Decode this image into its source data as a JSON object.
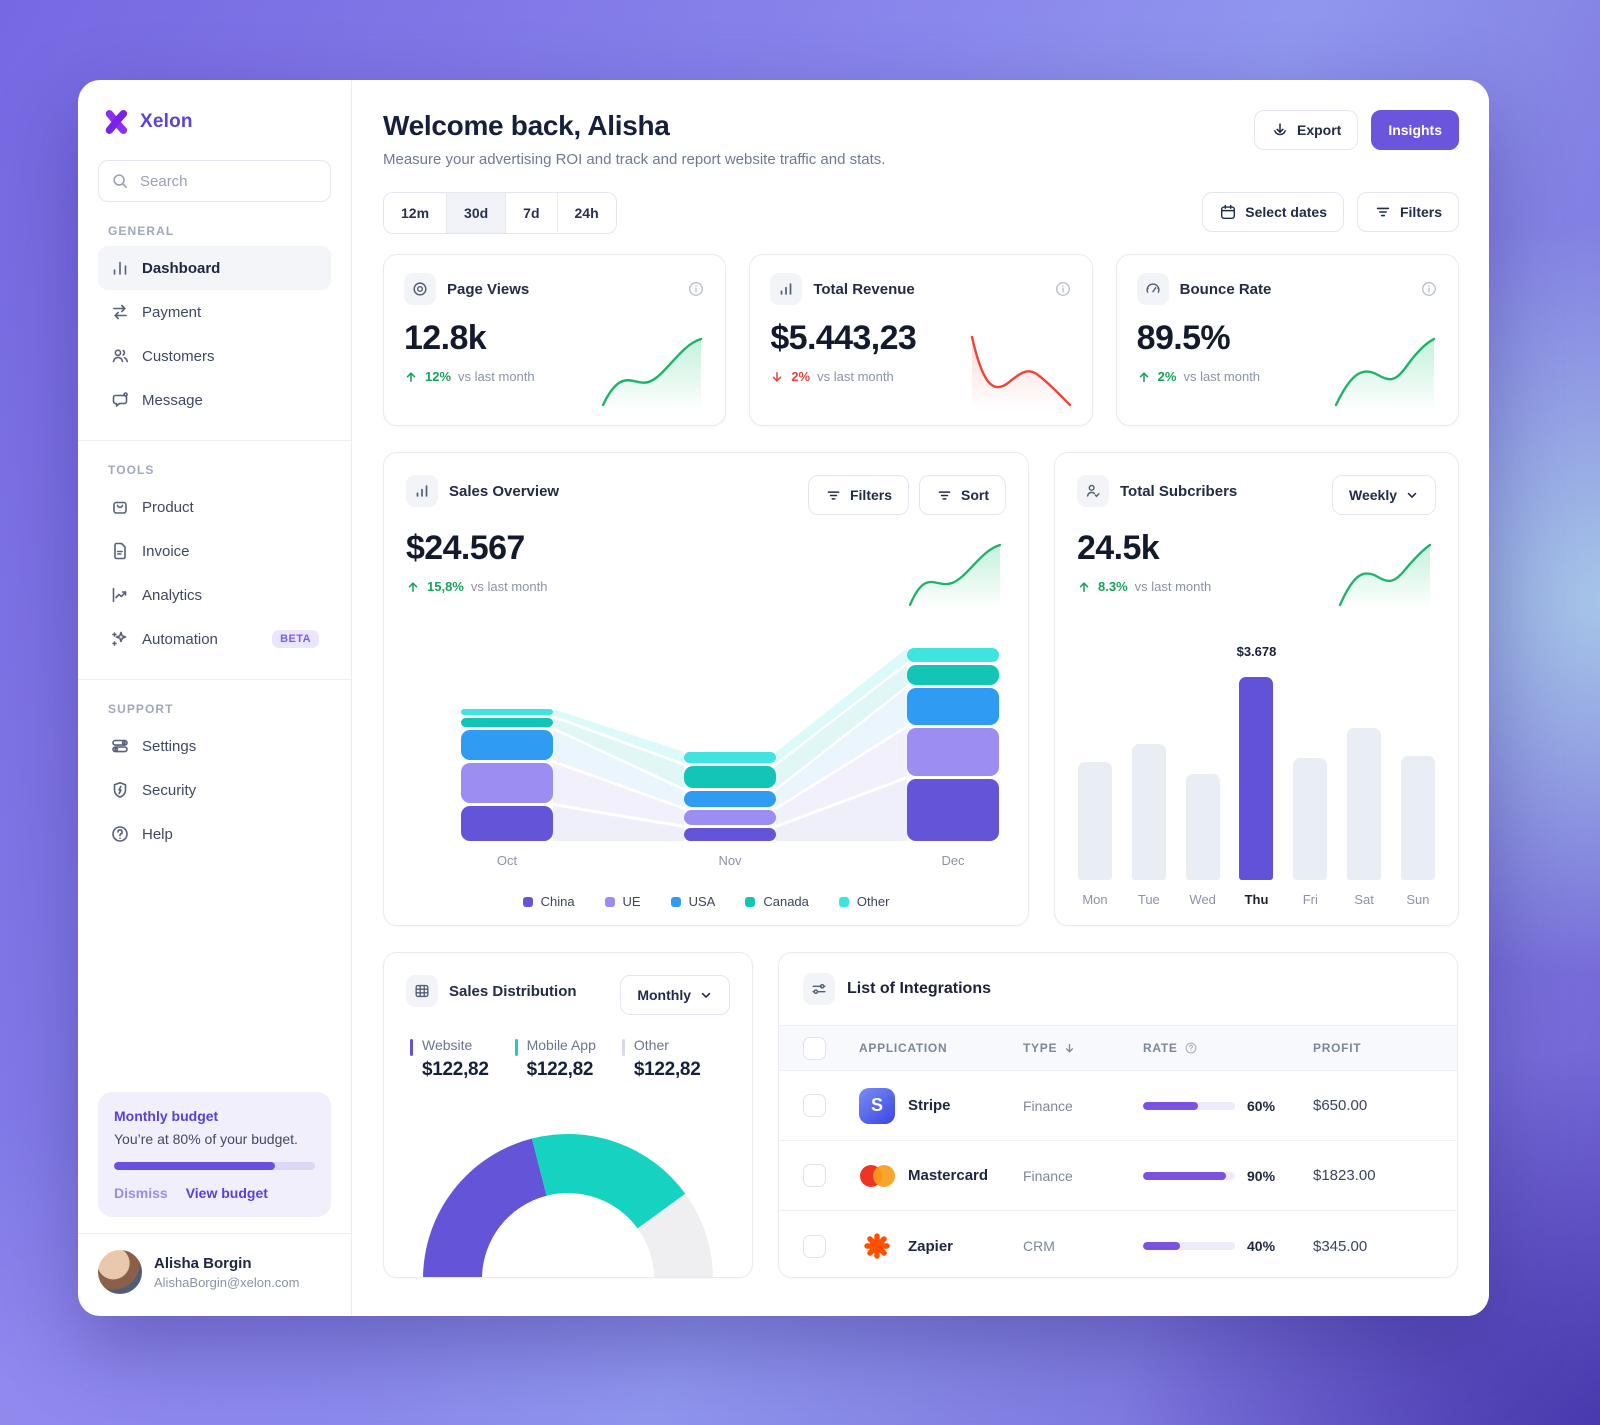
{
  "app": {
    "brand": "Xelon"
  },
  "sidebar": {
    "search_placeholder": "Search",
    "sections": [
      {
        "label": "GENERAL",
        "items": [
          {
            "label": "Dashboard",
            "icon": "bar-chart-icon",
            "active": true
          },
          {
            "label": "Payment",
            "icon": "transfer-icon"
          },
          {
            "label": "Customers",
            "icon": "users-icon"
          },
          {
            "label": "Message",
            "icon": "chat-icon"
          }
        ]
      },
      {
        "label": "TOOLS",
        "items": [
          {
            "label": "Product",
            "icon": "bag-icon"
          },
          {
            "label": "Invoice",
            "icon": "document-icon"
          },
          {
            "label": "Analytics",
            "icon": "trend-icon"
          },
          {
            "label": "Automation",
            "icon": "sparkle-icon",
            "badge": "BETA"
          }
        ]
      },
      {
        "label": "SUPPORT",
        "items": [
          {
            "label": "Settings",
            "icon": "sliders-icon"
          },
          {
            "label": "Security",
            "icon": "shield-icon"
          },
          {
            "label": "Help",
            "icon": "help-icon"
          }
        ]
      }
    ],
    "budget": {
      "title": "Monthly budget",
      "message": "You’re at 80% of your budget.",
      "percent": 80,
      "dismiss_label": "Dismiss",
      "view_label": "View budget"
    },
    "user": {
      "name": "Alisha Borgin",
      "email": "AlishaBorgin@xelon.com"
    }
  },
  "header": {
    "title": "Welcome back, Alisha",
    "subtitle": "Measure your advertising ROI and track and report website traffic and stats.",
    "export_label": "Export",
    "insights_label": "Insights"
  },
  "controls": {
    "ranges": [
      "12m",
      "30d",
      "7d",
      "24h"
    ],
    "active_range": "30d",
    "select_dates_label": "Select dates",
    "filters_label": "Filters"
  },
  "stats": [
    {
      "title": "Page Views",
      "value": "12.8k",
      "delta": "12%",
      "direction": "up",
      "note": "vs last month",
      "trend_color": "#1db36b"
    },
    {
      "title": "Total Revenue",
      "value": "$5.443,23",
      "delta": "2%",
      "direction": "down",
      "note": "vs last month",
      "trend_color": "#ee4437"
    },
    {
      "title": "Bounce Rate",
      "value": "89.5%",
      "delta": "2%",
      "direction": "up",
      "note": "vs last month",
      "trend_color": "#1db36b"
    }
  ],
  "sales_overview": {
    "title": "Sales Overview",
    "filters_label": "Filters",
    "sort_label": "Sort",
    "value": "$24.567",
    "delta": "15,8%",
    "direction": "up",
    "note": "vs last month"
  },
  "subscribers": {
    "title": "Total Subcribers",
    "period": "Weekly",
    "value": "24.5k",
    "delta": "8.3%",
    "direction": "up",
    "note": "vs last month"
  },
  "distribution": {
    "title": "Sales Distribution",
    "period": "Monthly",
    "stats": [
      {
        "label": "Website",
        "value": "$122,82",
        "color": "#6454d8"
      },
      {
        "label": "Mobile App",
        "value": "$122,82",
        "color": "#16d3c1"
      },
      {
        "label": "Other",
        "value": "$122,82",
        "color": "#d6dae2"
      }
    ]
  },
  "integrations": {
    "title": "List of Integrations",
    "columns": [
      "APPLICATION",
      "TYPE",
      "RATE",
      "PROFIT"
    ],
    "rows": [
      {
        "app": "Stripe",
        "icon": "stripe-icon",
        "type": "Finance",
        "rate": 60,
        "rate_label": "60%",
        "profit": "$650.00"
      },
      {
        "app": "Mastercard",
        "icon": "mastercard-icon",
        "type": "Finance",
        "rate": 90,
        "rate_label": "90%",
        "profit": "$1823.00"
      },
      {
        "app": "Zapier",
        "icon": "zapier-icon",
        "type": "CRM",
        "rate": 40,
        "rate_label": "40%",
        "profit": "$345.00"
      }
    ]
  },
  "chart_data": [
    {
      "name": "sales_overview_stacked",
      "type": "bar",
      "stacked": true,
      "grid": false,
      "categories": [
        "Oct",
        "Nov",
        "Dec"
      ],
      "series": [
        {
          "name": "China",
          "color": "#6454d8",
          "values": [
            35,
            13,
            62
          ]
        },
        {
          "name": "UE",
          "color": "#9c8df2",
          "values": [
            40,
            15,
            48
          ]
        },
        {
          "name": "USA",
          "color": "#2f9bf2",
          "values": [
            30,
            16,
            37
          ]
        },
        {
          "name": "Canada",
          "color": "#12c5b5",
          "values": [
            9,
            22,
            20
          ]
        },
        {
          "name": "Other",
          "color": "#3fe3e0",
          "values": [
            6,
            11,
            14
          ]
        }
      ],
      "legend": [
        "China",
        "UE",
        "USA",
        "Canada",
        "Other"
      ],
      "legend_position": "bottom"
    },
    {
      "name": "subscribers_weekly",
      "type": "bar",
      "categories": [
        "Mon",
        "Tue",
        "Wed",
        "Thu",
        "Fri",
        "Sat",
        "Sun"
      ],
      "values": [
        58,
        67,
        52,
        100,
        60,
        75,
        61
      ],
      "highlight_index": 3,
      "highlight_label": "$3.678",
      "bar_color": "#e9edf4",
      "highlight_color": "#6152d9"
    },
    {
      "name": "sales_distribution_half_donut",
      "type": "pie",
      "segments": [
        {
          "label": "Website",
          "value": 42,
          "color": "#6454d8"
        },
        {
          "label": "Mobile App",
          "value": 38,
          "color": "#16d3c1"
        },
        {
          "label": "Other",
          "value": 20,
          "color": "#efeff2"
        }
      ]
    }
  ]
}
